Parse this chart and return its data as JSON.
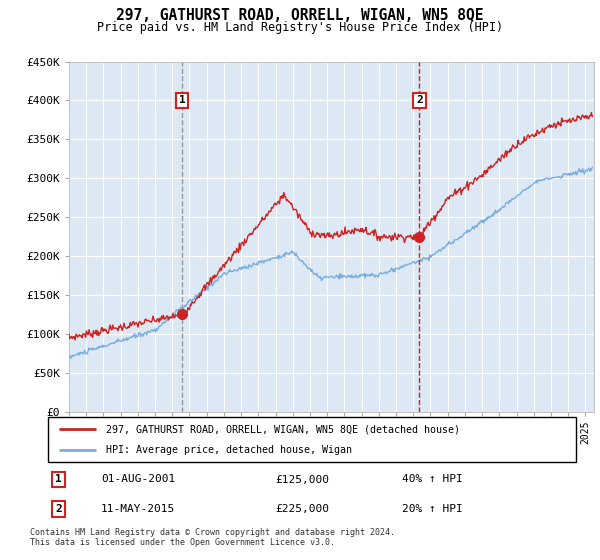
{
  "title": "297, GATHURST ROAD, ORRELL, WIGAN, WN5 8QE",
  "subtitle": "Price paid vs. HM Land Registry's House Price Index (HPI)",
  "ylabel_ticks": [
    "£0",
    "£50K",
    "£100K",
    "£150K",
    "£200K",
    "£250K",
    "£300K",
    "£350K",
    "£400K",
    "£450K"
  ],
  "ylim": [
    0,
    450000
  ],
  "yticks": [
    0,
    50000,
    100000,
    150000,
    200000,
    250000,
    300000,
    350000,
    400000,
    450000
  ],
  "xlim_start": 1995.0,
  "xlim_end": 2025.5,
  "plot_bg_color": "#dce9f5",
  "sale1_date": "01-AUG-2001",
  "sale1_price": 125000,
  "sale1_hpi": "40% ↑ HPI",
  "sale1_x": 2001.58,
  "sale2_date": "11-MAY-2015",
  "sale2_price": 225000,
  "sale2_hpi": "20% ↑ HPI",
  "sale2_x": 2015.36,
  "legend_line1": "297, GATHURST ROAD, ORRELL, WIGAN, WN5 8QE (detached house)",
  "legend_line2": "HPI: Average price, detached house, Wigan",
  "footer1": "Contains HM Land Registry data © Crown copyright and database right 2024.",
  "footer2": "This data is licensed under the Open Government Licence v3.0.",
  "red_color": "#cc2222",
  "blue_color": "#7aaddd",
  "grid_color": "#ffffff",
  "spine_color": "#aaaaaa"
}
